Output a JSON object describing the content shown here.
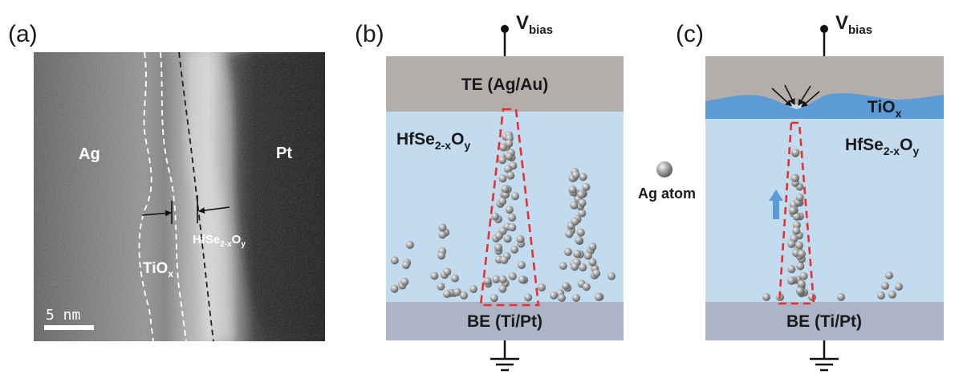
{
  "panels": {
    "a": {
      "label": "(a)",
      "left_material": "Ag",
      "right_material": "Pt",
      "tiox_label": {
        "base": "TiO",
        "sub": "x"
      },
      "hfseo_label": {
        "base": "HfSe",
        "sub1": "2-x",
        "mid": "O",
        "sub2": "y"
      },
      "scale_bar": "5 nm"
    },
    "b": {
      "label": "(b)",
      "vbias": {
        "base": "V",
        "sub": "bias"
      },
      "top_electrode": "TE (Ag/Au)",
      "layer": {
        "base": "HfSe",
        "sub1": "2-x",
        "mid": "O",
        "sub2": "y"
      },
      "bottom_electrode": "BE (Ti/Pt)"
    },
    "legend": {
      "atom_label": "Ag atom"
    },
    "c": {
      "label": "(c)",
      "vbias": {
        "base": "V",
        "sub": "bias"
      },
      "tiox": {
        "base": "TiO",
        "sub": "x"
      },
      "layer": {
        "base": "HfSe",
        "sub1": "2-x",
        "mid": "O",
        "sub2": "y"
      },
      "bottom_electrode": "BE (Ti/Pt)"
    }
  },
  "colors": {
    "electrode_top": "#b3aeac",
    "electrode_bottom": "#acb4c6",
    "oxide_layer": "#c3dbef",
    "tiox_layer": "#5c9bd5",
    "filament_outline": "#e53030",
    "arrow_blue": "#5b9bd5"
  }
}
